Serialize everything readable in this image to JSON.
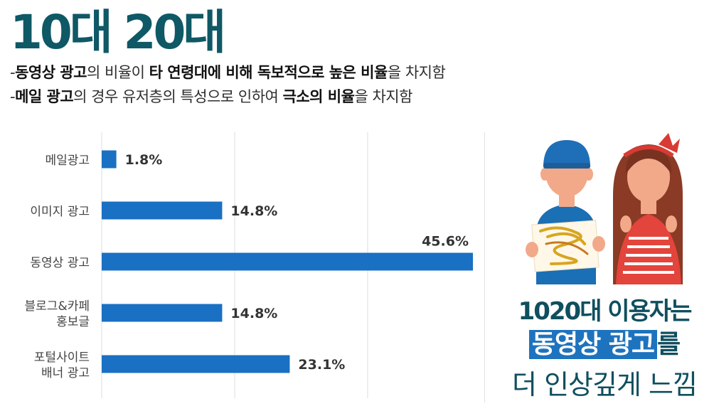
{
  "header": {
    "title": "10대 20대",
    "line1": [
      "-",
      "동영상 광고",
      "의 비율이 ",
      "타 연령대에 비해 독보적으로 높은 비율",
      "을 차지함"
    ],
    "line2": [
      "-",
      "메일 광고",
      "의 경우 유저층의 특성으로 인하여 ",
      "극소의 비율",
      "을 차지함"
    ]
  },
  "chart_data": {
    "type": "bar",
    "orientation": "horizontal",
    "categories": [
      [
        "메일광고"
      ],
      [
        "이미지 광고"
      ],
      [
        "동영상 광고"
      ],
      [
        "블로그&카페",
        "홍보글"
      ],
      [
        "포털사이트",
        "배너 광고"
      ]
    ],
    "values": [
      1.8,
      14.8,
      45.6,
      14.8,
      23.1
    ],
    "labels": [
      "1.8%",
      "14.8%",
      "45.6%",
      "14.8%",
      "23.1%"
    ],
    "xlim": [
      0,
      45.6
    ],
    "bar_color": "#1a70c2",
    "grid": true,
    "legend": "none"
  },
  "callout": {
    "line1": "1020대 이용자는",
    "highlight": "동영상 광고",
    "line2_rest": "를",
    "line3": "더 인상깊게 느낌",
    "highlight_color": "#1e73be"
  }
}
